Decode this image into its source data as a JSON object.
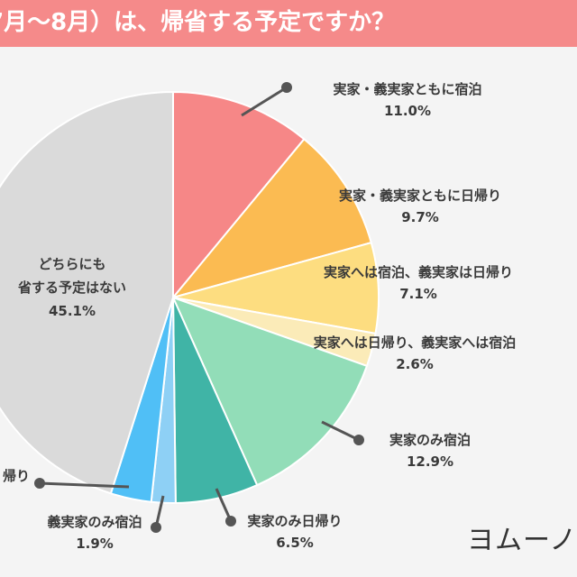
{
  "header": {
    "title": "7月〜8月）は、帰省する予定ですか？",
    "background": "#f58a8a"
  },
  "brand": {
    "logo_text": "ヨムーノ"
  },
  "chart_data": {
    "type": "pie",
    "title": "7月〜8月）は、帰省する予定ですか？",
    "start": "12 o'clock, clockwise",
    "slices": [
      {
        "label": [
          "実家・義実家ともに宿泊"
        ],
        "value": 11.0,
        "value_text": "11.0%",
        "color": "#f68787"
      },
      {
        "label": [
          "実家・義実家ともに日帰り"
        ],
        "value": 9.7,
        "value_text": "9.7%",
        "color": "#fbbb52"
      },
      {
        "label": [
          "実家へは宿泊、義実家は日帰り"
        ],
        "value": 7.1,
        "value_text": "7.1%",
        "color": "#fddd80"
      },
      {
        "label": [
          "実家へは日帰り、義実家へは宿泊"
        ],
        "value": 2.6,
        "value_text": "2.6%",
        "color": "#fbebb8"
      },
      {
        "label": [
          "実家のみ宿泊"
        ],
        "value": 12.9,
        "value_text": "12.9%",
        "color": "#92ddb8"
      },
      {
        "label": [
          "実家のみ日帰り"
        ],
        "value": 6.5,
        "value_text": "6.5%",
        "color": "#40b4a6"
      },
      {
        "label": [
          "義実家のみ宿泊"
        ],
        "value": 1.9,
        "value_text": "1.9%",
        "color": "#8ed0f5"
      },
      {
        "label": [
          "帰り"
        ],
        "value": 3.2,
        "value_text": "",
        "color": "#50bff6"
      },
      {
        "label": [
          "どちらにも",
          "省する予定はない"
        ],
        "value": 45.1,
        "value_text": "45.1%",
        "color": "#dadada"
      }
    ]
  }
}
